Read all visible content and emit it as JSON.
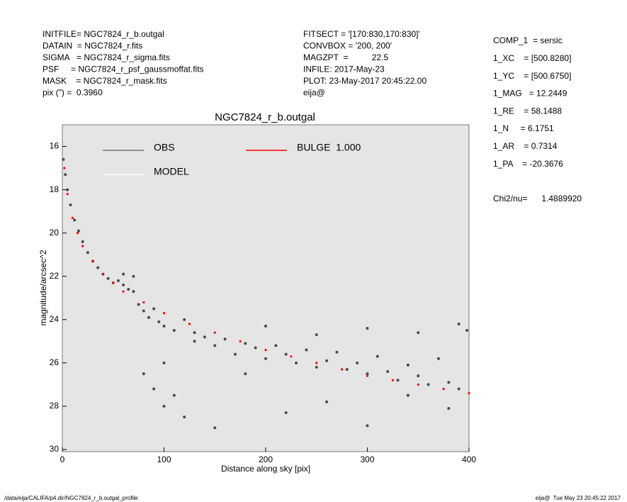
{
  "header": {
    "left": [
      "INITFILE= NGC7824_r_b.outgal",
      "DATAIN  = NGC7824_r.fits",
      "SIGMA   = NGC7824_r_sigma.fits",
      "PSF     = NGC7824_r_psf_gaussmoffat.fits",
      "MASK    = NGC7824_r_mask.fits",
      "pix (\") =  0.3960"
    ],
    "middle": [
      "FITSECT = '[170:830,170:830]'",
      "CONVBOX = '200, 200'",
      "MAGZPT  =          22.5",
      "INFILE: 2017-May-23",
      "PLOT: 23-May-2017 20:45:22.00",
      "eija@"
    ],
    "right": [
      "COMP_1  = sersic",
      "1_XC    = [500.8280]",
      "1_YC    = [500.6750]",
      "1_MAG   = 12.2449",
      "1_RE    = 58.1488",
      "1_N     = 6.1751",
      "1_AR    = 0.7314",
      "1_PA    = -20.3676"
    ],
    "chi2": "Chi2/nu=      1.4889920"
  },
  "footer": {
    "left": "/data/eija/CALIFA/p4.dir/NGC7824_r_b.outgal_profile",
    "right": "eija@  Tue May 23 20:45:22 2017"
  },
  "chart_data": {
    "type": "scatter",
    "title": "NGC7824_r_b.outgal",
    "x_label": "Distance along sky [pix]",
    "y_label": "magnitude/arcsec^2",
    "xlim": [
      0,
      400
    ],
    "xticks": [
      0,
      100,
      200,
      300,
      400
    ],
    "ylim": [
      30.1,
      15
    ],
    "yticks": [
      16,
      18,
      20,
      22,
      24,
      26,
      28,
      30
    ],
    "background": "#e5e5e5",
    "series": [
      {
        "name": "OBS",
        "color": "#4a4a4a",
        "x": [
          1,
          3,
          5,
          8,
          12,
          16,
          20,
          25,
          30,
          35,
          40,
          45,
          50,
          55,
          60,
          65,
          70,
          75,
          80,
          85,
          90,
          95,
          100,
          110,
          120,
          130,
          140,
          150,
          160,
          170,
          180,
          190,
          200,
          210,
          220,
          230,
          240,
          250,
          260,
          270,
          280,
          290,
          300,
          310,
          320,
          330,
          340,
          350,
          360,
          370,
          380,
          390,
          398,
          80,
          90,
          100,
          110,
          120,
          150,
          180,
          220,
          260,
          300,
          340,
          380,
          60,
          70,
          100,
          130,
          200,
          250,
          300,
          350,
          390
        ],
        "values": [
          16.6,
          17.3,
          18.0,
          18.7,
          19.4,
          19.9,
          20.4,
          20.9,
          21.3,
          21.6,
          21.9,
          22.1,
          22.3,
          22.2,
          22.4,
          22.6,
          22.7,
          23.3,
          23.6,
          23.9,
          23.5,
          24.1,
          24.3,
          24.5,
          24.0,
          25.0,
          24.8,
          25.2,
          24.9,
          25.6,
          25.1,
          25.3,
          25.8,
          25.2,
          25.6,
          26.0,
          25.4,
          26.2,
          25.9,
          25.5,
          26.3,
          26.0,
          26.5,
          25.7,
          26.4,
          26.8,
          26.1,
          26.6,
          27.0,
          25.8,
          26.9,
          27.2,
          24.5,
          26.5,
          27.2,
          28.0,
          27.5,
          28.5,
          29.0,
          26.5,
          28.3,
          27.8,
          28.9,
          27.5,
          28.1,
          21.9,
          22.0,
          26.0,
          24.6,
          24.3,
          24.7,
          24.4,
          24.6,
          24.2
        ]
      },
      {
        "name": "BULGE  1.000",
        "color": "#ff0000",
        "x": [
          2,
          5,
          10,
          15,
          20,
          30,
          40,
          50,
          60,
          80,
          100,
          125,
          150,
          175,
          200,
          225,
          250,
          275,
          300,
          325,
          350,
          375,
          400
        ],
        "values": [
          17.0,
          18.2,
          19.3,
          20.0,
          20.6,
          21.3,
          21.9,
          22.3,
          22.7,
          23.2,
          23.7,
          24.2,
          24.6,
          25.0,
          25.4,
          25.7,
          26.0,
          26.3,
          26.6,
          26.8,
          27.0,
          27.2,
          27.4
        ]
      },
      {
        "name": "MODEL",
        "color": "#ffffff",
        "x": [],
        "values": []
      }
    ]
  }
}
